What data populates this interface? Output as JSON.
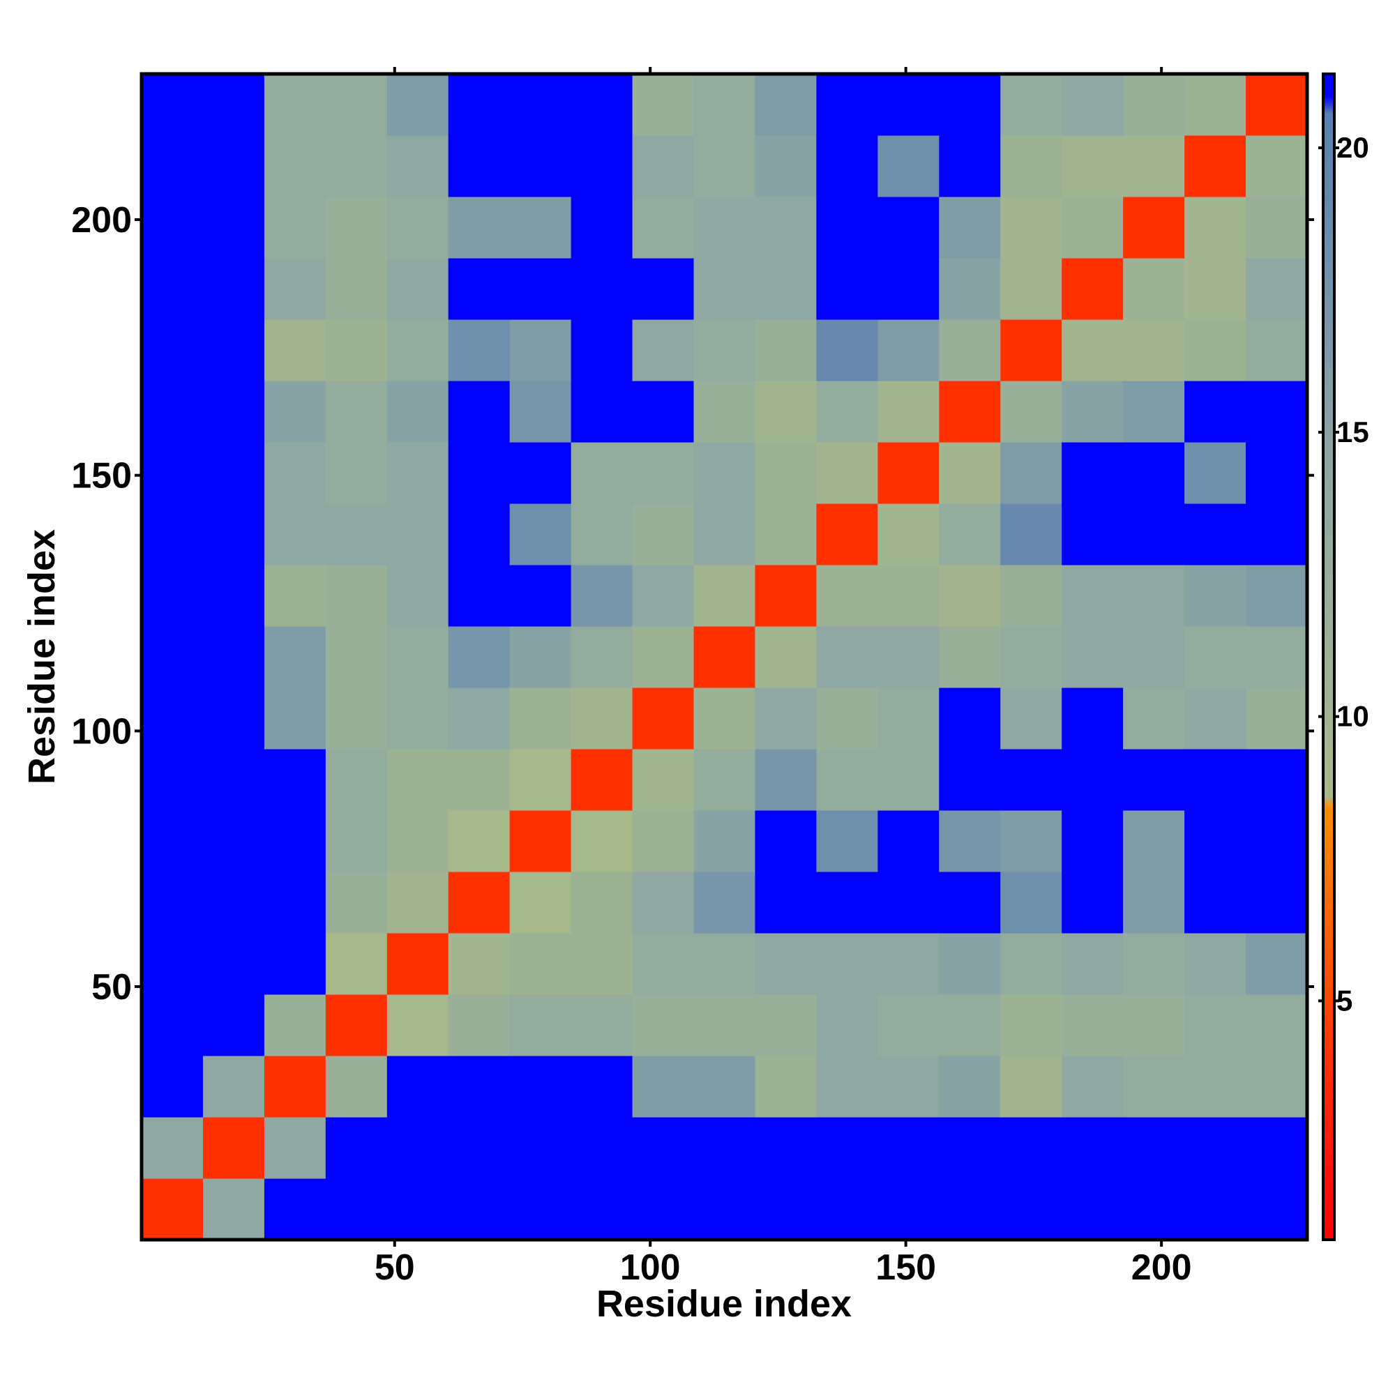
{
  "chart_data": {
    "type": "heatmap",
    "xlabel": "Residue index",
    "ylabel": "Residue index",
    "xlim": [
      0.5,
      228.5
    ],
    "ylim": [
      0.5,
      228.5
    ],
    "xticks": [
      50,
      100,
      150,
      200
    ],
    "yticks": [
      50,
      100,
      150,
      200
    ],
    "zlim": [
      0.8,
      21.3
    ],
    "zticks": [
      5,
      10,
      15,
      20
    ],
    "colorscale": [
      [
        0.8,
        "#ff0000"
      ],
      [
        4,
        "#ff3000"
      ],
      [
        8.4,
        "#ff8c00"
      ],
      [
        8.6,
        "#a9b98a"
      ],
      [
        14,
        "#8fa9a2"
      ],
      [
        20.6,
        "#5a7fb2"
      ],
      [
        20.9,
        "#0000ff"
      ],
      [
        21.3,
        "#0000ff"
      ]
    ],
    "x": [
      6.5,
      18.5,
      30.5,
      42.5,
      54.5,
      66.5,
      78.5,
      90.5,
      102.5,
      114.5,
      126.5,
      138.5,
      150.5,
      162.5,
      174.5,
      186.5,
      198.5,
      210.5,
      222.5
    ],
    "y": [
      6.5,
      18.5,
      30.5,
      42.5,
      54.5,
      66.5,
      78.5,
      90.5,
      102.5,
      114.5,
      126.5,
      138.5,
      150.5,
      162.5,
      174.5,
      186.5,
      198.5,
      210.5,
      222.5
    ],
    "z": [
      [
        4,
        14,
        21,
        21,
        21,
        21,
        21,
        21,
        21,
        21,
        21,
        21,
        21,
        21,
        21,
        21,
        21,
        21,
        21
      ],
      [
        14,
        4,
        14,
        21,
        21,
        21,
        21,
        21,
        21,
        21,
        21,
        21,
        21,
        21,
        21,
        21,
        21,
        21,
        21
      ],
      [
        21,
        14,
        4,
        12,
        21,
        21,
        21,
        21,
        16,
        16,
        11,
        14,
        14,
        15,
        10,
        14,
        13,
        13,
        13
      ],
      [
        21,
        21,
        12,
        4,
        9,
        12,
        13,
        13,
        12,
        12,
        12,
        14,
        13,
        13,
        11,
        12,
        12,
        13,
        13
      ],
      [
        21,
        21,
        21,
        9,
        4,
        10,
        11,
        11,
        13,
        13,
        14,
        14,
        14,
        15,
        13,
        14,
        13,
        14,
        16
      ],
      [
        21,
        21,
        21,
        12,
        10,
        4,
        9,
        11,
        14,
        17,
        21,
        21,
        21,
        21,
        18,
        21,
        16,
        21,
        21
      ],
      [
        21,
        21,
        21,
        13,
        11,
        9,
        4,
        9,
        11,
        15,
        21,
        18,
        21,
        17,
        16,
        21,
        16,
        21,
        21
      ],
      [
        21,
        21,
        21,
        13,
        11,
        11,
        9,
        4,
        10,
        13,
        17,
        13,
        13,
        21,
        21,
        21,
        21,
        21,
        21
      ],
      [
        21,
        21,
        16,
        12,
        13,
        14,
        11,
        10,
        4,
        11,
        14,
        12,
        13,
        21,
        14,
        21,
        13,
        14,
        12
      ],
      [
        21,
        21,
        16,
        12,
        13,
        17,
        15,
        13,
        11,
        4,
        10,
        14,
        14,
        12,
        13,
        14,
        14,
        13,
        13
      ],
      [
        21,
        21,
        11,
        12,
        14,
        21,
        21,
        17,
        14,
        10,
        4,
        11,
        11,
        10,
        12,
        14,
        14,
        15,
        16
      ],
      [
        21,
        21,
        14,
        14,
        14,
        21,
        18,
        13,
        12,
        14,
        11,
        4,
        10,
        13,
        19,
        21,
        21,
        21,
        21
      ],
      [
        21,
        21,
        14,
        13,
        14,
        21,
        21,
        13,
        13,
        14,
        11,
        10,
        4,
        10,
        16,
        21,
        21,
        18,
        21
      ],
      [
        21,
        21,
        15,
        13,
        15,
        21,
        17,
        21,
        21,
        12,
        10,
        13,
        10,
        4,
        12,
        15,
        16,
        21,
        21
      ],
      [
        21,
        21,
        10,
        11,
        13,
        18,
        16,
        21,
        14,
        13,
        12,
        19,
        16,
        12,
        4,
        10,
        10,
        11,
        13
      ],
      [
        21,
        21,
        14,
        12,
        14,
        21,
        21,
        21,
        21,
        14,
        14,
        21,
        21,
        15,
        10,
        4,
        11,
        10,
        14
      ],
      [
        21,
        21,
        13,
        12,
        13,
        16,
        16,
        21,
        13,
        14,
        14,
        21,
        21,
        16,
        10,
        11,
        4,
        10,
        12
      ],
      [
        21,
        21,
        13,
        13,
        14,
        21,
        21,
        21,
        14,
        13,
        15,
        21,
        18,
        21,
        11,
        10,
        10,
        4,
        11
      ],
      [
        21,
        21,
        13,
        13,
        16,
        21,
        21,
        21,
        12,
        13,
        16,
        21,
        21,
        21,
        13,
        14,
        12,
        11,
        4
      ]
    ]
  }
}
